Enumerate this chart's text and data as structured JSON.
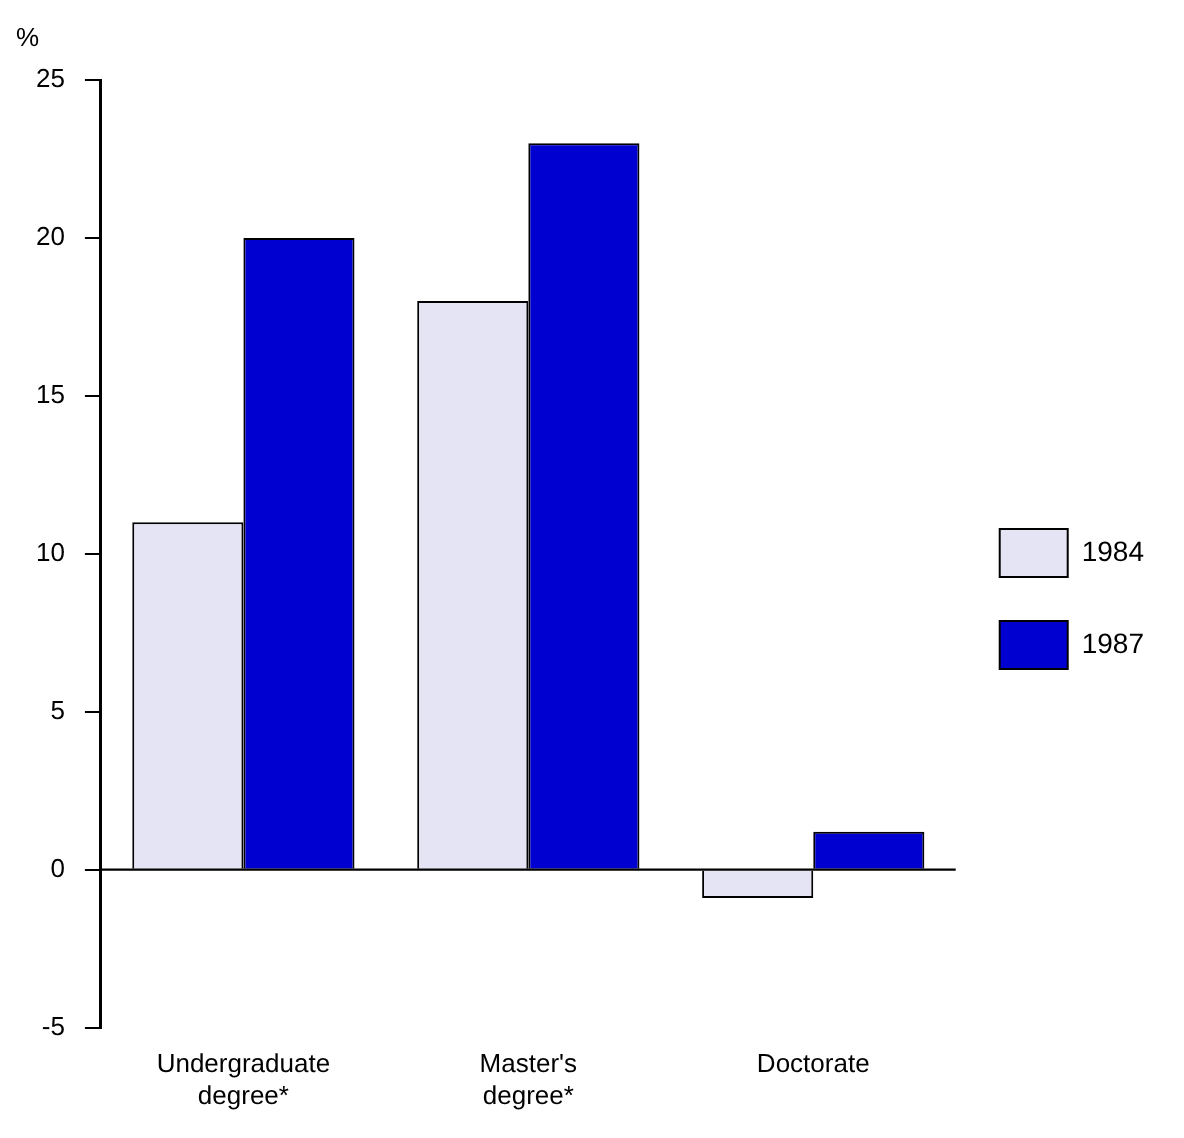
{
  "chart_data": {
    "type": "bar",
    "ylabel": "%",
    "categories": [
      "Undergraduate degree*",
      "Master's degree*",
      "Doctorate"
    ],
    "series": [
      {
        "name": "1984",
        "color": "#e4e4f4",
        "values": [
          11,
          18,
          -0.9
        ]
      },
      {
        "name": "1987",
        "color": "#0000d0",
        "values": [
          20,
          23,
          1.2
        ]
      }
    ],
    "ylim": [
      -5,
      25
    ],
    "yticks": [
      -5,
      0,
      5,
      10,
      15,
      20,
      25
    ],
    "grid": false,
    "ref_lines": [
      {
        "axis": "y",
        "value": 0,
        "color": "#000000"
      }
    ],
    "legend": "right"
  }
}
